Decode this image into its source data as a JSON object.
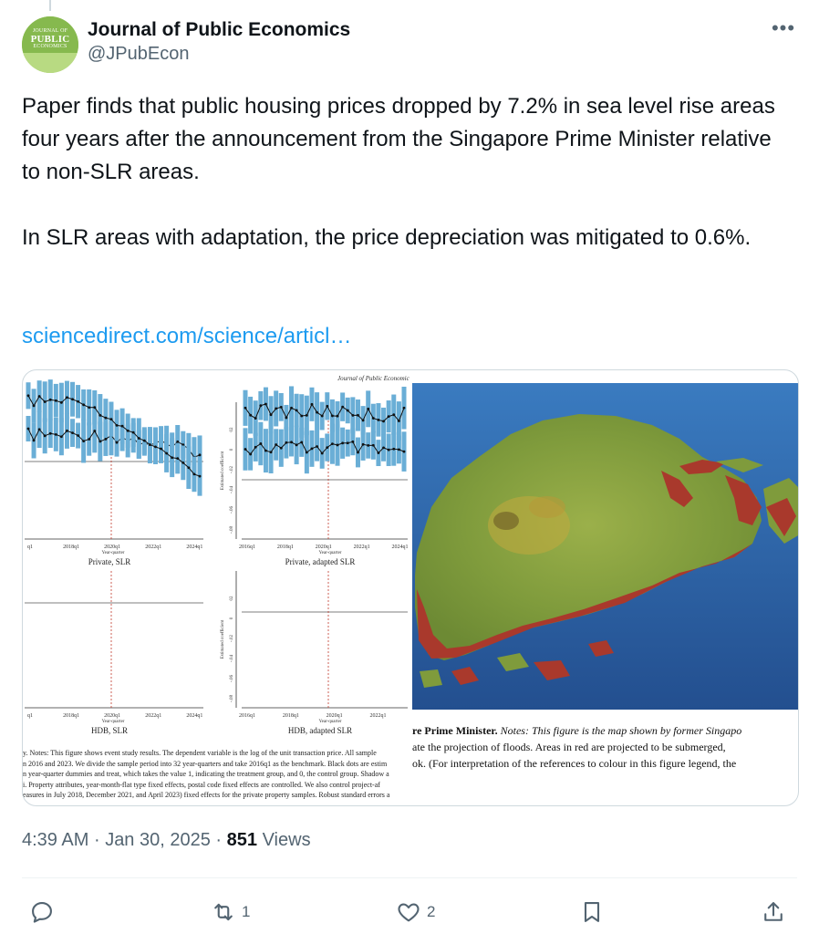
{
  "author": {
    "display_name": "Journal of Public Economics",
    "handle": "@JPubEcon",
    "avatar_text_top": "JOURNAL OF",
    "avatar_text_main": "PUBLIC",
    "avatar_text_bottom": "ECONOMICS"
  },
  "tweet": {
    "paragraph1": "Paper finds that public housing prices dropped by 7.2% in sea level rise areas four years after the announcement from the Singapore Prime Minister relative to non-SLR areas.",
    "paragraph2": "In SLR areas with adaptation, the price depreciation was mitigated to 0.6%.",
    "link": "sciencedirect.com/science/articl…"
  },
  "media": {
    "journal_header": "Journal of Public Economic",
    "panels": [
      {
        "title": "Private, SLR",
        "xticks": [
          "q1",
          "2018q1",
          "2020q1",
          "2022q1",
          "2024q1"
        ],
        "xlabel": "Year-quarter"
      },
      {
        "title": "Private, adapted SLR",
        "xticks": [
          "2016q1",
          "2018q1",
          "2020q1",
          "2022q1",
          "2024q1"
        ],
        "xlabel": "Year-quarter",
        "ylabel": "Estimated coefficient",
        "yticks": [
          "02",
          "0",
          "-.02",
          "-.04",
          "-.06",
          "-.08"
        ]
      },
      {
        "title": "HDB, SLR",
        "xticks": [
          "q1",
          "2018q1",
          "2020q1",
          "2022q1",
          "2024q1"
        ],
        "xlabel": "Year-quarter"
      },
      {
        "title": "HDB, adapted SLR",
        "xticks": [
          "2016q1",
          "2018q1",
          "2020q1",
          "2022q1"
        ],
        "xlabel": "Year-quarter",
        "ylabel": "Estimated coefficient",
        "yticks": [
          "02",
          "0",
          "-.02",
          "-.04",
          "-.06",
          "-.08"
        ]
      }
    ],
    "caption_left": [
      "y. Notes: This figure shows event study results. The dependent variable is the log of the unit transaction price. All sample",
      "n 2016 and 2023. We divide the sample period into 32 year-quarters and take 2016q1 as the benchmark. Black dots are estim",
      "n year-quarter dummies and treat, which takes the value 1, indicating the treatment group, and 0, the control group. Shadow a",
      "i. Property attributes, year-month-flat type fixed effects, postal code fixed effects are controlled. We also control project-af",
      "easures in July 2018, December 2021, and April 2023) fixed effects for the private property samples. Robust standard errors a"
    ],
    "caption_right_bold": "re Prime Minister.",
    "caption_right_lines": [
      "Notes: This figure is the map shown by former Singapo",
      "ate the projection of floods. Areas in red are projected to be submerged,",
      "ok. (For interpretation of the references to colour in this figure legend, the"
    ]
  },
  "meta": {
    "time": "4:39 AM",
    "separator": "·",
    "date": "Jan 30, 2025",
    "views_count": "851",
    "views_label": "Views"
  },
  "actions": {
    "reply_count": "",
    "retweet_count": "1",
    "like_count": "2"
  },
  "colors": {
    "text": "#0f1419",
    "secondary": "#536471",
    "link": "#1d9bf0",
    "bar": "#6aaed6",
    "sea": "#2f67a8",
    "land": "#7d9a3a",
    "flood": "#b03a2e"
  }
}
